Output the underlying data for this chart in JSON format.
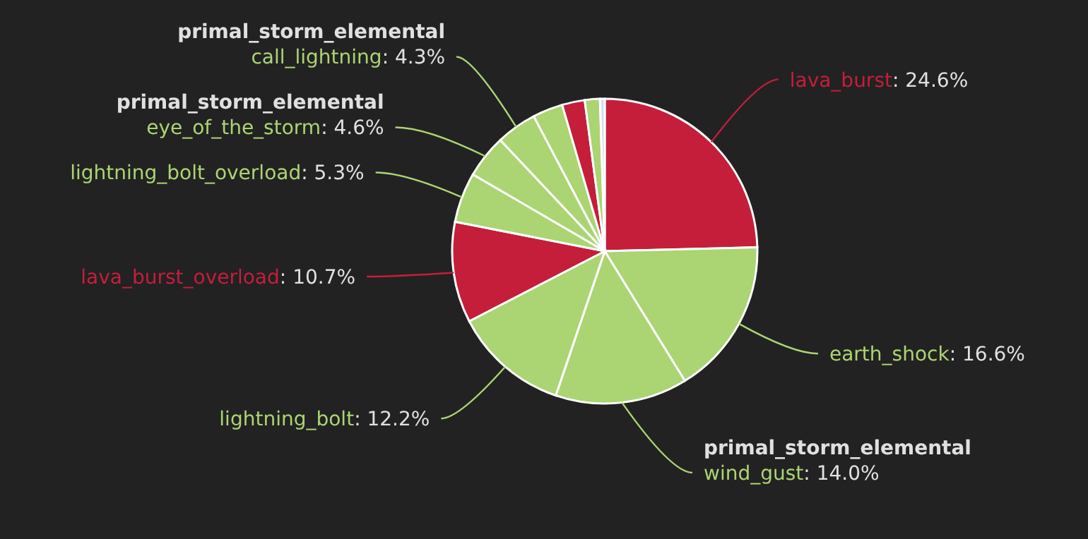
{
  "chart_data": {
    "type": "pie",
    "categories": [
      "lava_burst",
      "earth_shock",
      "primal_storm_elemental\nwind_gust",
      "lightning_bolt",
      "lava_burst_overload",
      "lightning_bolt_overload",
      "primal_storm_elemental\neye_of_the_storm",
      "primal_storm_elemental\ncall_lightning",
      null,
      null,
      null,
      null
    ],
    "values": [
      24.6,
      16.6,
      14.0,
      12.2,
      10.7,
      5.3,
      4.6,
      4.3,
      3.2,
      2.4,
      1.6,
      0.5
    ],
    "value_labels": [
      ": 24.6%",
      ": 16.6%",
      ": 14.0%",
      ": 12.2%",
      ": 10.7%",
      ": 5.3%",
      ": 4.6%",
      ": 4.3%",
      null,
      null,
      null,
      null
    ],
    "colors": [
      "#c41e3a",
      "#abd473",
      "#abd473",
      "#abd473",
      "#c41e3a",
      "#abd473",
      "#abd473",
      "#abd473",
      "#abd473",
      "#c41e3a",
      "#abd473",
      "#d8dcf0"
    ]
  }
}
